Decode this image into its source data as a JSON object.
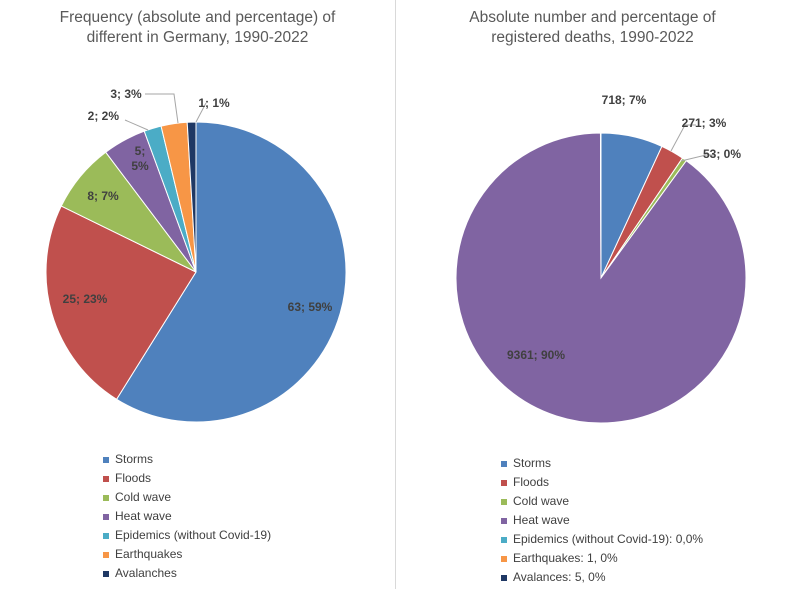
{
  "chart_data": [
    {
      "type": "pie",
      "title": "Frequency (absolute and percentage) of different in Germany, 1990-2022",
      "title_lines": [
        "Frequency (absolute and percentage) of",
        "different in Germany, 1990-2022"
      ],
      "legend_position": "bottom",
      "slices": [
        {
          "name": "Storms",
          "value": 63,
          "label": "63; 59%",
          "color": "#4f81bd"
        },
        {
          "name": "Floods",
          "value": 25,
          "label": "25; 23%",
          "color": "#c0504d"
        },
        {
          "name": "Cold wave",
          "value": 8,
          "label": "8; 7%",
          "color": "#9bbb59"
        },
        {
          "name": "Heat wave",
          "value": 5,
          "label": "5; 5%",
          "label_lines": [
            "5;",
            "5%"
          ],
          "color": "#8064a2"
        },
        {
          "name": "Epidemics (without Covid-19)",
          "value": 2,
          "label": "2; 2%",
          "color": "#4bacc6"
        },
        {
          "name": "Earthquakes",
          "value": 3,
          "label": "3; 3%",
          "color": "#f79646"
        },
        {
          "name": "Avalanches",
          "value": 1,
          "label": "1; 1%",
          "color": "#1f3864"
        }
      ],
      "legend": [
        "Storms",
        "Floods",
        "Cold wave",
        "Heat wave",
        "Epidemics (without Covid-19)",
        "Earthquakes",
        "Avalanches"
      ]
    },
    {
      "type": "pie",
      "title": "Absolute number and percentage of registered deaths, 1990-2022",
      "title_lines": [
        "Absolute number and percentage of",
        "registered deaths, 1990-2022"
      ],
      "legend_position": "bottom",
      "slices": [
        {
          "name": "Storms",
          "value": 718,
          "label": "718; 7%",
          "color": "#4f81bd"
        },
        {
          "name": "Floods",
          "value": 271,
          "label": "271; 3%",
          "color": "#c0504d"
        },
        {
          "name": "Cold wave",
          "value": 53,
          "label": "53; 0%",
          "color": "#9bbb59"
        },
        {
          "name": "Heat wave",
          "value": 9361,
          "label": "9361; 90%",
          "color": "#8064a2"
        },
        {
          "name": "Epidemics (without Covid-19)",
          "value": 0,
          "label": "",
          "color": "#4bacc6"
        },
        {
          "name": "Earthquakes",
          "value": 1,
          "label": "",
          "color": "#f79646"
        },
        {
          "name": "Avalances",
          "value": 5,
          "label": "",
          "color": "#1f3864"
        }
      ],
      "legend": [
        "Storms",
        "Floods",
        "Cold wave",
        "Heat wave",
        "Epidemics (without Covid-19): 0,0%",
        "Earthquakes: 1, 0%",
        "Avalances: 5, 0%"
      ]
    }
  ]
}
